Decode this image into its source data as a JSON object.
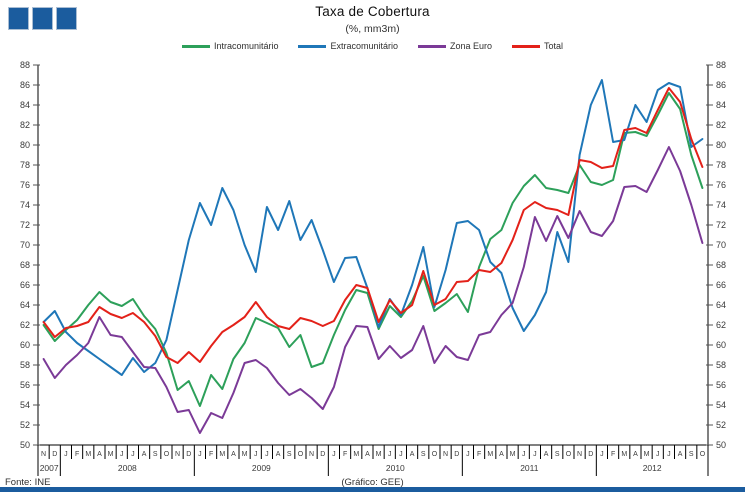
{
  "title": "Taxa de Cobertura",
  "subtitle": "(%, mm3m)",
  "footer": {
    "source": "Fonte: INE",
    "credit": "(Gráfico: GEE)"
  },
  "brand": {
    "bar_color": "#1b5c9e",
    "logo_square_count": 3
  },
  "chart_data": {
    "type": "line",
    "title": "Taxa de Cobertura",
    "subtitle": "(%, mm3m)",
    "ylabel": "",
    "xlabel": "",
    "ylim": [
      50,
      88
    ],
    "ytick_step": 2,
    "grid": false,
    "legend_position": "top",
    "x_months": [
      "N",
      "D",
      "J",
      "F",
      "M",
      "A",
      "M",
      "J",
      "J",
      "A",
      "S",
      "O",
      "N",
      "D",
      "J",
      "F",
      "M",
      "A",
      "M",
      "J",
      "J",
      "A",
      "S",
      "O",
      "N",
      "D",
      "J",
      "F",
      "M",
      "A",
      "M",
      "J",
      "J",
      "A",
      "S",
      "O",
      "N",
      "D",
      "J",
      "F",
      "M",
      "A",
      "M",
      "J",
      "J",
      "A",
      "S",
      "O",
      "N",
      "D",
      "J",
      "F",
      "M",
      "A",
      "M",
      "J",
      "J",
      "A",
      "S",
      "O"
    ],
    "x_years": [
      {
        "label": "2007",
        "months": 2
      },
      {
        "label": "2008",
        "months": 12
      },
      {
        "label": "2009",
        "months": 12
      },
      {
        "label": "2010",
        "months": 12
      },
      {
        "label": "2011",
        "months": 12
      },
      {
        "label": "2012",
        "months": 10
      }
    ],
    "series": [
      {
        "name": "Intracomunitário",
        "color": "#2da05a",
        "values": [
          62.0,
          60.4,
          61.5,
          62.5,
          64.0,
          65.3,
          64.3,
          63.9,
          64.6,
          62.9,
          61.6,
          59.2,
          55.5,
          56.4,
          53.9,
          57.0,
          55.6,
          58.6,
          60.2,
          62.7,
          62.2,
          61.7,
          59.8,
          61.0,
          57.8,
          58.2,
          61.0,
          63.5,
          65.5,
          65.2,
          61.6,
          63.9,
          62.8,
          64.4,
          66.9,
          63.4,
          64.2,
          65.1,
          63.3,
          67.8,
          70.6,
          71.5,
          74.2,
          75.9,
          77.0,
          75.7,
          75.5,
          75.2,
          78.0,
          76.3,
          76.0,
          76.5,
          81.2,
          81.3,
          80.9,
          83.0,
          85.2,
          83.6,
          79.0,
          75.7
        ]
      },
      {
        "name": "Extracomunitário",
        "color": "#1f77b8",
        "values": [
          62.3,
          63.4,
          61.3,
          60.2,
          59.4,
          58.6,
          57.8,
          57.0,
          58.7,
          57.3,
          58.2,
          60.5,
          65.5,
          70.5,
          74.2,
          72.0,
          75.7,
          73.5,
          70.0,
          67.3,
          73.8,
          71.5,
          74.4,
          70.5,
          72.5,
          69.5,
          66.3,
          68.7,
          68.8,
          65.7,
          61.8,
          64.6,
          63.0,
          66.0,
          69.8,
          63.8,
          67.5,
          72.2,
          72.4,
          71.5,
          68.3,
          67.2,
          63.7,
          61.4,
          63.0,
          65.3,
          71.3,
          68.3,
          79.0,
          84.0,
          86.5,
          80.3,
          80.5,
          84.0,
          82.3,
          85.5,
          86.2,
          85.8,
          79.8,
          80.6
        ]
      },
      {
        "name": "Zona Euro",
        "color": "#7b3a97",
        "values": [
          58.6,
          56.7,
          58.0,
          59.0,
          60.2,
          62.8,
          61.0,
          60.8,
          59.3,
          57.8,
          57.7,
          55.8,
          53.3,
          53.5,
          51.2,
          53.2,
          52.7,
          55.2,
          58.2,
          58.5,
          57.7,
          56.2,
          55.0,
          55.6,
          54.7,
          53.6,
          55.8,
          59.8,
          61.9,
          61.8,
          58.6,
          59.9,
          58.7,
          59.5,
          61.9,
          58.2,
          59.9,
          58.8,
          58.5,
          61.0,
          61.3,
          63.0,
          64.2,
          67.8,
          72.8,
          70.4,
          72.9,
          70.7,
          73.4,
          71.3,
          70.9,
          72.4,
          75.8,
          75.9,
          75.3,
          77.5,
          79.8,
          77.4,
          74.0,
          70.2
        ]
      },
      {
        "name": "Total",
        "color": "#e32119",
        "values": [
          62.3,
          60.8,
          61.7,
          61.9,
          62.3,
          63.8,
          63.1,
          62.7,
          63.2,
          62.3,
          60.9,
          58.8,
          58.2,
          59.3,
          58.3,
          59.9,
          61.3,
          62.0,
          62.8,
          64.3,
          62.8,
          61.9,
          61.6,
          62.7,
          62.4,
          61.9,
          62.4,
          64.5,
          66.0,
          65.7,
          62.3,
          64.5,
          63.2,
          64.0,
          67.4,
          64.0,
          64.6,
          66.3,
          66.4,
          67.5,
          67.3,
          68.2,
          70.5,
          73.5,
          74.3,
          73.7,
          73.5,
          73.0,
          78.5,
          78.3,
          77.7,
          77.9,
          81.5,
          81.7,
          81.2,
          83.5,
          85.7,
          84.3,
          80.6,
          77.8
        ]
      }
    ]
  }
}
